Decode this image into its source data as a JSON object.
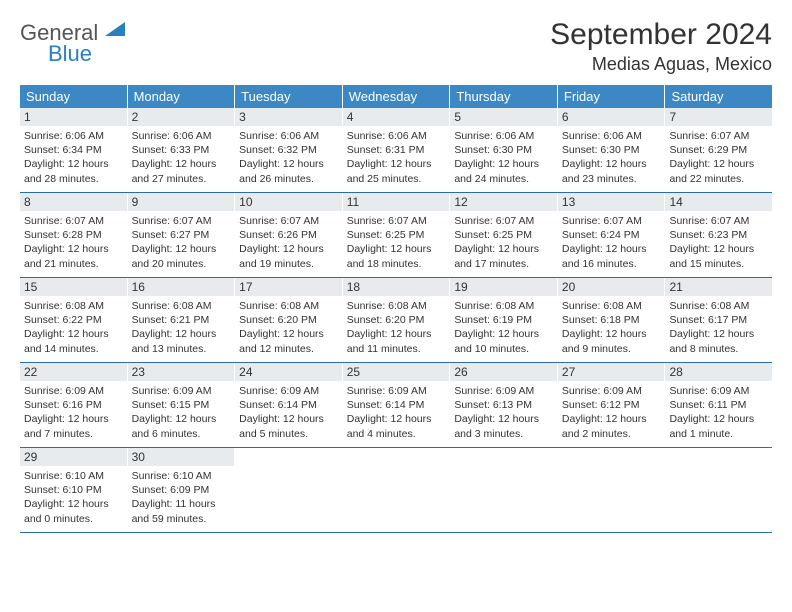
{
  "logo": {
    "line1": "General",
    "line2": "Blue"
  },
  "header": {
    "title": "September 2024",
    "location": "Medias Aguas, Mexico"
  },
  "colors": {
    "header_bg": "#3b88c4",
    "header_text": "#ffffff",
    "daynum_bg": "#e7ebee",
    "row_border": "#2a6ea8",
    "logo_blue": "#2a7fbf",
    "text": "#333333"
  },
  "day_names": [
    "Sunday",
    "Monday",
    "Tuesday",
    "Wednesday",
    "Thursday",
    "Friday",
    "Saturday"
  ],
  "weeks": [
    [
      {
        "n": "1",
        "sunrise": "Sunrise: 6:06 AM",
        "sunset": "Sunset: 6:34 PM",
        "d1": "Daylight: 12 hours",
        "d2": "and 28 minutes."
      },
      {
        "n": "2",
        "sunrise": "Sunrise: 6:06 AM",
        "sunset": "Sunset: 6:33 PM",
        "d1": "Daylight: 12 hours",
        "d2": "and 27 minutes."
      },
      {
        "n": "3",
        "sunrise": "Sunrise: 6:06 AM",
        "sunset": "Sunset: 6:32 PM",
        "d1": "Daylight: 12 hours",
        "d2": "and 26 minutes."
      },
      {
        "n": "4",
        "sunrise": "Sunrise: 6:06 AM",
        "sunset": "Sunset: 6:31 PM",
        "d1": "Daylight: 12 hours",
        "d2": "and 25 minutes."
      },
      {
        "n": "5",
        "sunrise": "Sunrise: 6:06 AM",
        "sunset": "Sunset: 6:30 PM",
        "d1": "Daylight: 12 hours",
        "d2": "and 24 minutes."
      },
      {
        "n": "6",
        "sunrise": "Sunrise: 6:06 AM",
        "sunset": "Sunset: 6:30 PM",
        "d1": "Daylight: 12 hours",
        "d2": "and 23 minutes."
      },
      {
        "n": "7",
        "sunrise": "Sunrise: 6:07 AM",
        "sunset": "Sunset: 6:29 PM",
        "d1": "Daylight: 12 hours",
        "d2": "and 22 minutes."
      }
    ],
    [
      {
        "n": "8",
        "sunrise": "Sunrise: 6:07 AM",
        "sunset": "Sunset: 6:28 PM",
        "d1": "Daylight: 12 hours",
        "d2": "and 21 minutes."
      },
      {
        "n": "9",
        "sunrise": "Sunrise: 6:07 AM",
        "sunset": "Sunset: 6:27 PM",
        "d1": "Daylight: 12 hours",
        "d2": "and 20 minutes."
      },
      {
        "n": "10",
        "sunrise": "Sunrise: 6:07 AM",
        "sunset": "Sunset: 6:26 PM",
        "d1": "Daylight: 12 hours",
        "d2": "and 19 minutes."
      },
      {
        "n": "11",
        "sunrise": "Sunrise: 6:07 AM",
        "sunset": "Sunset: 6:25 PM",
        "d1": "Daylight: 12 hours",
        "d2": "and 18 minutes."
      },
      {
        "n": "12",
        "sunrise": "Sunrise: 6:07 AM",
        "sunset": "Sunset: 6:25 PM",
        "d1": "Daylight: 12 hours",
        "d2": "and 17 minutes."
      },
      {
        "n": "13",
        "sunrise": "Sunrise: 6:07 AM",
        "sunset": "Sunset: 6:24 PM",
        "d1": "Daylight: 12 hours",
        "d2": "and 16 minutes."
      },
      {
        "n": "14",
        "sunrise": "Sunrise: 6:07 AM",
        "sunset": "Sunset: 6:23 PM",
        "d1": "Daylight: 12 hours",
        "d2": "and 15 minutes."
      }
    ],
    [
      {
        "n": "15",
        "sunrise": "Sunrise: 6:08 AM",
        "sunset": "Sunset: 6:22 PM",
        "d1": "Daylight: 12 hours",
        "d2": "and 14 minutes."
      },
      {
        "n": "16",
        "sunrise": "Sunrise: 6:08 AM",
        "sunset": "Sunset: 6:21 PM",
        "d1": "Daylight: 12 hours",
        "d2": "and 13 minutes."
      },
      {
        "n": "17",
        "sunrise": "Sunrise: 6:08 AM",
        "sunset": "Sunset: 6:20 PM",
        "d1": "Daylight: 12 hours",
        "d2": "and 12 minutes."
      },
      {
        "n": "18",
        "sunrise": "Sunrise: 6:08 AM",
        "sunset": "Sunset: 6:20 PM",
        "d1": "Daylight: 12 hours",
        "d2": "and 11 minutes."
      },
      {
        "n": "19",
        "sunrise": "Sunrise: 6:08 AM",
        "sunset": "Sunset: 6:19 PM",
        "d1": "Daylight: 12 hours",
        "d2": "and 10 minutes."
      },
      {
        "n": "20",
        "sunrise": "Sunrise: 6:08 AM",
        "sunset": "Sunset: 6:18 PM",
        "d1": "Daylight: 12 hours",
        "d2": "and 9 minutes."
      },
      {
        "n": "21",
        "sunrise": "Sunrise: 6:08 AM",
        "sunset": "Sunset: 6:17 PM",
        "d1": "Daylight: 12 hours",
        "d2": "and 8 minutes."
      }
    ],
    [
      {
        "n": "22",
        "sunrise": "Sunrise: 6:09 AM",
        "sunset": "Sunset: 6:16 PM",
        "d1": "Daylight: 12 hours",
        "d2": "and 7 minutes."
      },
      {
        "n": "23",
        "sunrise": "Sunrise: 6:09 AM",
        "sunset": "Sunset: 6:15 PM",
        "d1": "Daylight: 12 hours",
        "d2": "and 6 minutes."
      },
      {
        "n": "24",
        "sunrise": "Sunrise: 6:09 AM",
        "sunset": "Sunset: 6:14 PM",
        "d1": "Daylight: 12 hours",
        "d2": "and 5 minutes."
      },
      {
        "n": "25",
        "sunrise": "Sunrise: 6:09 AM",
        "sunset": "Sunset: 6:14 PM",
        "d1": "Daylight: 12 hours",
        "d2": "and 4 minutes."
      },
      {
        "n": "26",
        "sunrise": "Sunrise: 6:09 AM",
        "sunset": "Sunset: 6:13 PM",
        "d1": "Daylight: 12 hours",
        "d2": "and 3 minutes."
      },
      {
        "n": "27",
        "sunrise": "Sunrise: 6:09 AM",
        "sunset": "Sunset: 6:12 PM",
        "d1": "Daylight: 12 hours",
        "d2": "and 2 minutes."
      },
      {
        "n": "28",
        "sunrise": "Sunrise: 6:09 AM",
        "sunset": "Sunset: 6:11 PM",
        "d1": "Daylight: 12 hours",
        "d2": "and 1 minute."
      }
    ],
    [
      {
        "n": "29",
        "sunrise": "Sunrise: 6:10 AM",
        "sunset": "Sunset: 6:10 PM",
        "d1": "Daylight: 12 hours",
        "d2": "and 0 minutes."
      },
      {
        "n": "30",
        "sunrise": "Sunrise: 6:10 AM",
        "sunset": "Sunset: 6:09 PM",
        "d1": "Daylight: 11 hours",
        "d2": "and 59 minutes."
      },
      {
        "empty": true
      },
      {
        "empty": true
      },
      {
        "empty": true
      },
      {
        "empty": true
      },
      {
        "empty": true
      }
    ]
  ]
}
